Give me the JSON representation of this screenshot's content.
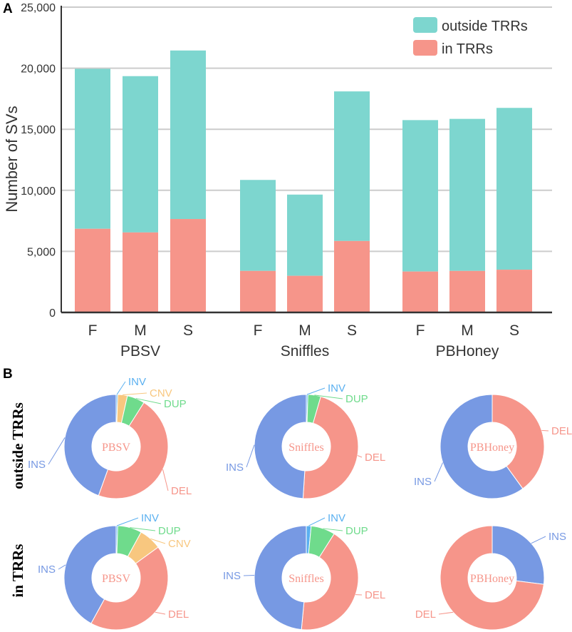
{
  "panel_labels": {
    "a": "A",
    "b": "B"
  },
  "colors": {
    "outside": "#7dd6cf",
    "in": "#f6958a",
    "INS": "#7799e3",
    "DEL": "#f6958a",
    "DUP": "#6fdb8c",
    "CNV": "#f8c77f",
    "INV": "#5ab0f0",
    "grid": "#cccccc",
    "axis": "#333333"
  },
  "chart_data": [
    {
      "type": "bar",
      "stacked": true,
      "ylabel": "Number of SVs",
      "ylim": [
        0,
        25000
      ],
      "yticks": [
        0,
        5000,
        10000,
        15000,
        20000,
        25000
      ],
      "ytick_labels": [
        "0",
        "5,000",
        "10,000",
        "15,000",
        "20,000",
        "25,000"
      ],
      "groups": [
        "PBSV",
        "Sniffles",
        "PBHoney"
      ],
      "categories": [
        "F",
        "M",
        "S",
        "F",
        "M",
        "S",
        "F",
        "M",
        "S"
      ],
      "legend_position": "top-right",
      "series": [
        {
          "name": "in TRRs",
          "key": "in",
          "values": [
            6850,
            6550,
            7650,
            3400,
            3000,
            5850,
            3350,
            3400,
            3500
          ]
        },
        {
          "name": "outside TRRs",
          "key": "outside",
          "values": [
            13100,
            12800,
            13800,
            7450,
            6650,
            12250,
            12400,
            12450,
            13250
          ]
        }
      ]
    },
    {
      "type": "pie",
      "donut": true,
      "row": "outside TRRs",
      "center_label": "PBSV",
      "slices": [
        {
          "label": "DEL",
          "value": 46.5
        },
        {
          "label": "INS",
          "value": 44.5
        },
        {
          "label": "INV",
          "value": 0.5
        },
        {
          "label": "CNV",
          "value": 3.0
        },
        {
          "label": "DUP",
          "value": 5.5
        }
      ]
    },
    {
      "type": "pie",
      "donut": true,
      "row": "outside TRRs",
      "center_label": "Sniffles",
      "slices": [
        {
          "label": "DEL",
          "value": 46.5
        },
        {
          "label": "INS",
          "value": 49.0
        },
        {
          "label": "INV",
          "value": 0.5
        },
        {
          "label": "DUP",
          "value": 4.0
        }
      ]
    },
    {
      "type": "pie",
      "donut": true,
      "row": "outside TRRs",
      "center_label": "PBHoney",
      "slices": [
        {
          "label": "DEL",
          "value": 40.0
        },
        {
          "label": "INS",
          "value": 60.0
        }
      ]
    },
    {
      "type": "pie",
      "donut": true,
      "row": "in TRRs",
      "center_label": "PBSV",
      "slices": [
        {
          "label": "DEL",
          "value": 43.0
        },
        {
          "label": "INS",
          "value": 42.0
        },
        {
          "label": "INV",
          "value": 0.5
        },
        {
          "label": "DUP",
          "value": 7.5
        },
        {
          "label": "CNV",
          "value": 7.0
        }
      ]
    },
    {
      "type": "pie",
      "donut": true,
      "row": "in TRRs",
      "center_label": "Sniffles",
      "slices": [
        {
          "label": "DEL",
          "value": 42.5
        },
        {
          "label": "INS",
          "value": 48.5
        },
        {
          "label": "INV",
          "value": 1.5
        },
        {
          "label": "DUP",
          "value": 7.5
        }
      ]
    },
    {
      "type": "pie",
      "donut": true,
      "row": "in TRRs",
      "center_label": "PBHoney",
      "slices": [
        {
          "label": "INS",
          "value": 27.0
        },
        {
          "label": "DEL",
          "value": 73.0
        }
      ]
    }
  ]
}
